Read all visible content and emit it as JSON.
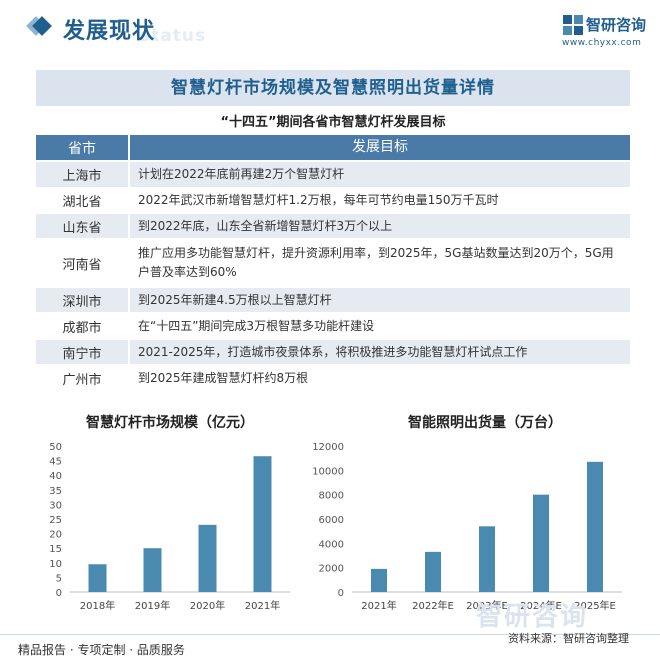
{
  "header": {
    "title": "发展现状",
    "title_watermark": "status",
    "brand_name": "智研咨询",
    "brand_url": "www.chyxx.com"
  },
  "banner": {
    "title": "智慧灯杆市场规模及智慧照明出货量详情"
  },
  "table": {
    "title": "“十四五”期间各省市智慧灯杆发展目标",
    "headers": [
      "省市",
      "发展目标"
    ],
    "rows": [
      {
        "region": "上海市",
        "goal": "计划在2022年底前再建2万个智慧灯杆"
      },
      {
        "region": "湖北省",
        "goal": "2022年武汉市新增智慧灯杆1.2万根，每年可节约电量150万千瓦时"
      },
      {
        "region": "山东省",
        "goal": "到2022年底，山东全省新增智慧灯杆3万个以上"
      },
      {
        "region": "河南省",
        "goal": "推广应用多功能智慧灯杆，提升资源利用率，到2025年，5G基站数量达到20万个，5G用户普及率达到60%"
      },
      {
        "region": "深圳市",
        "goal": "到2025年新建4.5万根以上智慧灯杆"
      },
      {
        "region": "成都市",
        "goal": "在“十四五”期间完成3万根智慧多功能杆建设"
      },
      {
        "region": "南宁市",
        "goal": "2021-2025年，打造城市夜景体系，将积极推进多功能智慧灯杆试点工作"
      },
      {
        "region": "广州市",
        "goal": "到2025年建成智慧灯杆约8万根"
      }
    ]
  },
  "chart_data": [
    {
      "type": "bar",
      "title": "智慧灯杆市场规模（亿元）",
      "categories": [
        "2018年",
        "2019年",
        "2020年",
        "2021年"
      ],
      "values": [
        9.5,
        15,
        23,
        46.5
      ],
      "ylim": [
        0,
        50
      ],
      "yticks": [
        0,
        5,
        10,
        15,
        20,
        25,
        30,
        35,
        40,
        45,
        50
      ],
      "grid": false,
      "bar_color": "#4a8ab0"
    },
    {
      "type": "bar",
      "title": "智能照明出货量（万台）",
      "categories": [
        "2021年",
        "2022年E",
        "2023年E",
        "2024年E",
        "2025年E"
      ],
      "values": [
        1900,
        3300,
        5400,
        8000,
        10700
      ],
      "ylim": [
        0,
        12000
      ],
      "yticks": [
        0,
        2000,
        4000,
        6000,
        8000,
        10000,
        12000
      ],
      "grid": false,
      "bar_color": "#4a8ab0"
    }
  ],
  "footer": {
    "left": "精品报告 · 专项定制 · 品质服务",
    "source": "资料来源：智研咨询整理",
    "watermark": "智研咨询"
  },
  "colors": {
    "brand": "#1f5f8f",
    "table_header": "#4a7aa8",
    "table_stripe": "#e6ebf1",
    "banner_bg": "#dbe4ee",
    "bar": "#4a8ab0"
  }
}
